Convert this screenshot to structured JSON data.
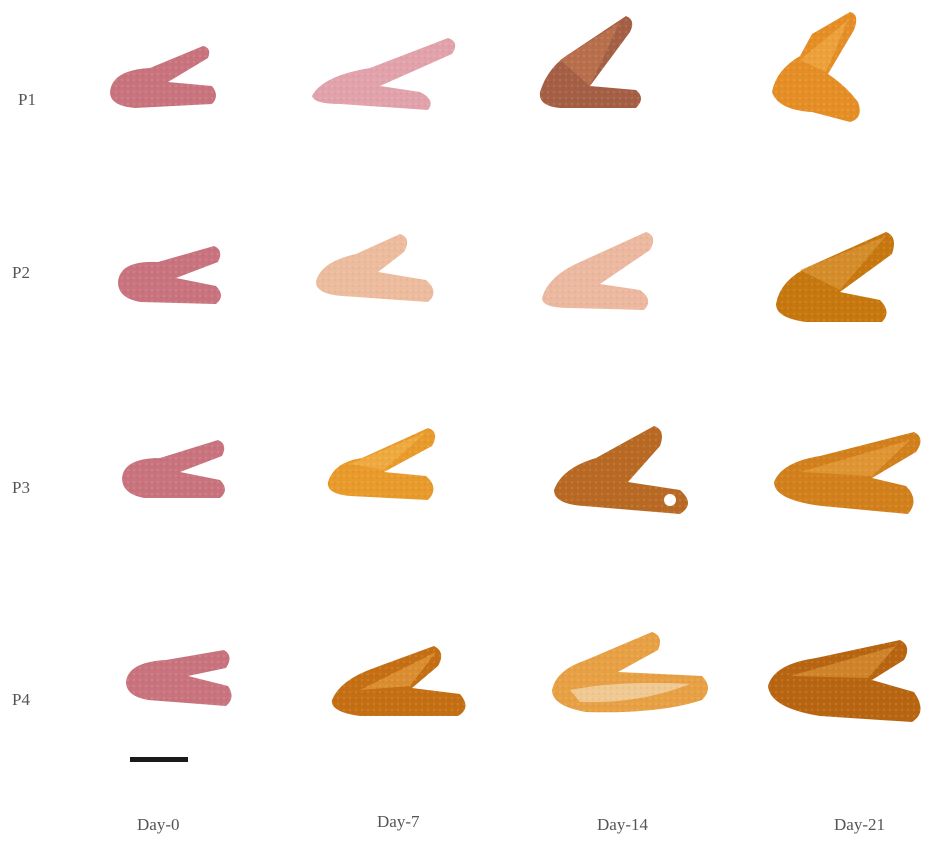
{
  "rows": [
    "P1",
    "P2",
    "P3",
    "P4"
  ],
  "columns": [
    "Day-0",
    "Day-7",
    "Day-14",
    "Day-21"
  ],
  "palette": {
    "fresh_pink": "#c97983",
    "pale_pink": "#e2a3ab",
    "light_peach": "#eec0a2",
    "golden": "#e89a2c",
    "amber": "#d27f1e",
    "brown": "#a0603a",
    "dark_amber": "#c16a10"
  }
}
